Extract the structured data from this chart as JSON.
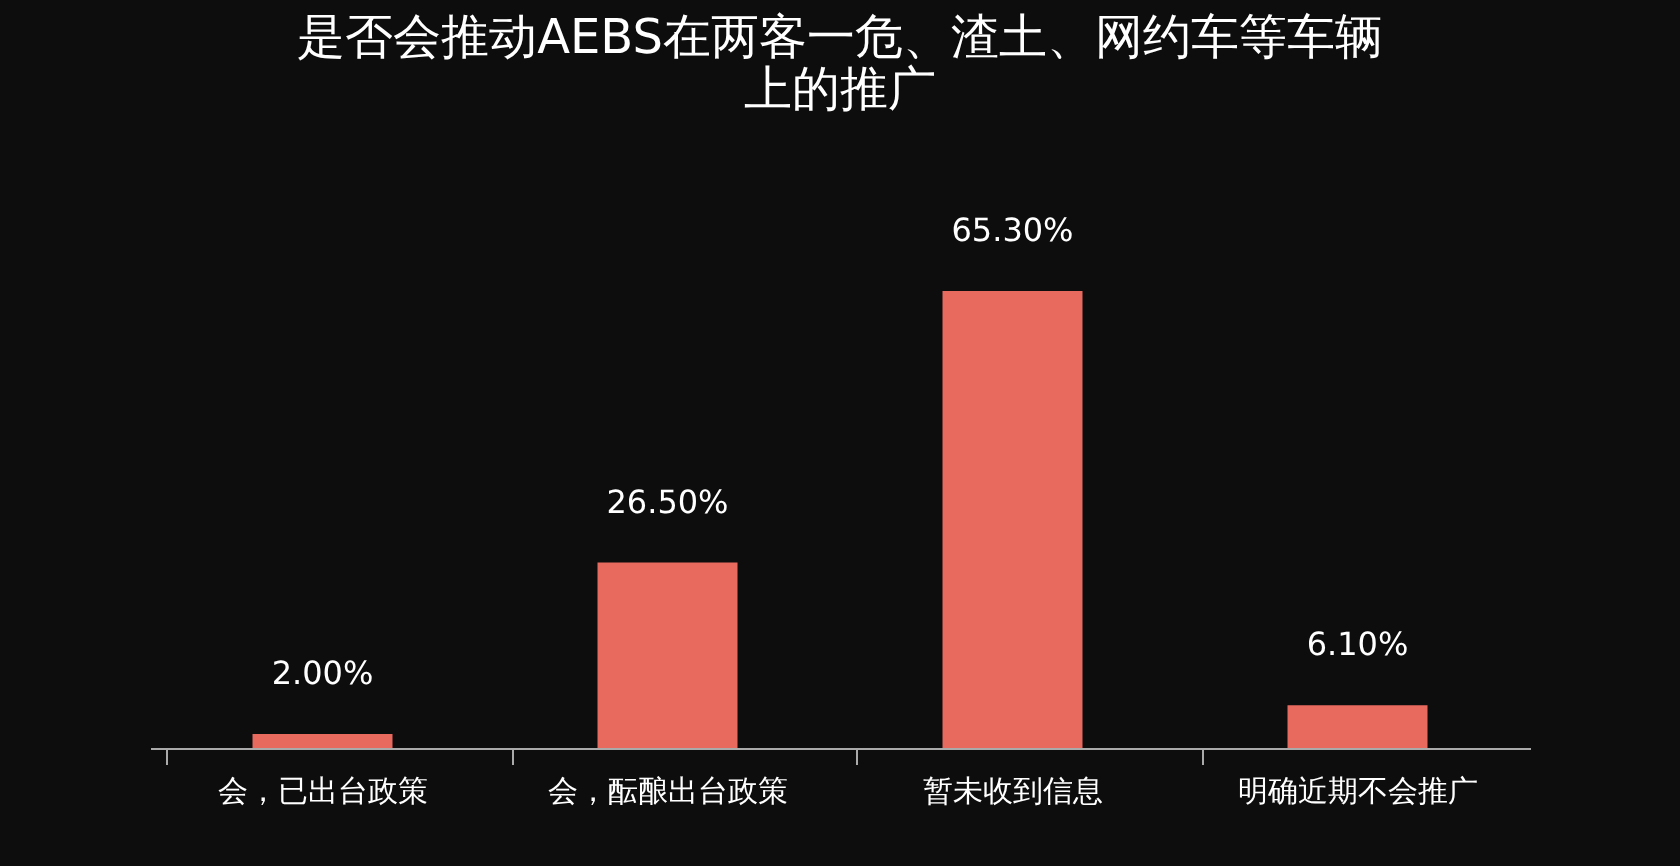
{
  "chart_data": {
    "type": "bar",
    "title": "是否会推动AEBS在两客一危、渣土、网约车等车辆上的推广",
    "categories": [
      "会，已出台政策",
      "会，酝酿出台政策",
      "暂未收到信息",
      "明确近期不会推广"
    ],
    "values": [
      2.0,
      26.5,
      65.3,
      6.1
    ],
    "value_labels": [
      "2.00%",
      "26.50%",
      "65.30%",
      "6.10%"
    ],
    "color": "#e8695e",
    "tick_labels": "x"
  }
}
